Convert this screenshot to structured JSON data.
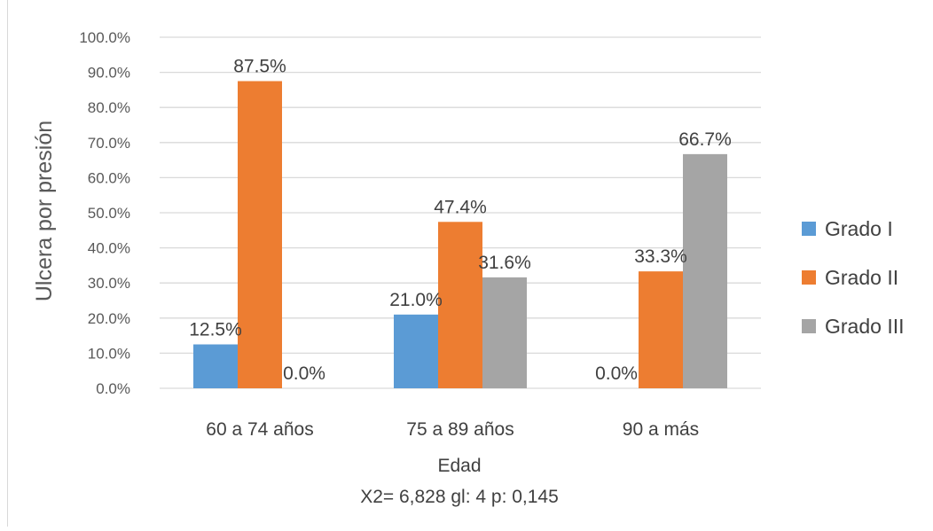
{
  "chart_data": {
    "type": "bar",
    "categories": [
      "60  a 74 años",
      "75 a 89 años",
      "90 a más"
    ],
    "series": [
      {
        "name": "Grado I",
        "values": [
          12.5,
          21.0,
          0.0
        ],
        "labels": [
          "12.5%",
          "21.0%",
          "0.0%"
        ]
      },
      {
        "name": "Grado II",
        "values": [
          87.5,
          47.4,
          33.3
        ],
        "labels": [
          "87.5%",
          "47.4%",
          "33.3%"
        ]
      },
      {
        "name": "Grado III",
        "values": [
          0.0,
          31.6,
          66.7
        ],
        "labels": [
          "0.0%",
          "31.6%",
          "66.7%"
        ]
      }
    ],
    "colors": [
      "#5b9bd5",
      "#ed7d31",
      "#a5a5a5"
    ],
    "ylabel": "Ulcera por presión",
    "xlabel": "Edad",
    "subtitle": "X2= 6,828 gl: 4 p: 0,145",
    "ylim": [
      0,
      100
    ],
    "yticks": [
      0,
      10,
      20,
      30,
      40,
      50,
      60,
      70,
      80,
      90,
      100
    ],
    "ytick_labels": [
      "0.0%",
      "10.0%",
      "20.0%",
      "30.0%",
      "40.0%",
      "50.0%",
      "60.0%",
      "70.0%",
      "80.0%",
      "90.0%",
      "100.0%"
    ],
    "grid": true,
    "legend_position": "right"
  }
}
